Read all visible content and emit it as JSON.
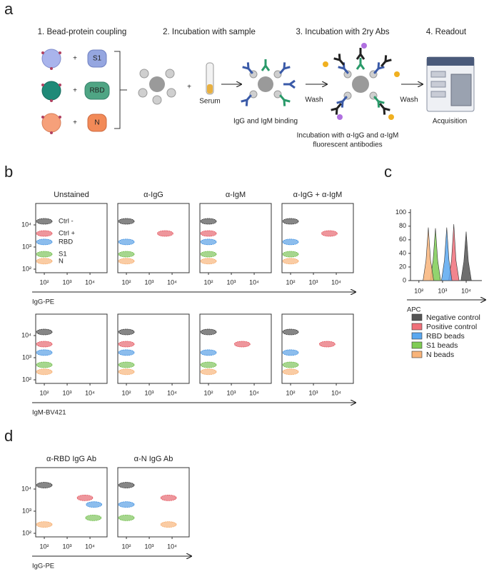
{
  "panel_labels": [
    "a",
    "b",
    "c",
    "d"
  ],
  "diagram": {
    "steps": [
      "1. Bead-protein coupling",
      "2. Incubation with sample",
      "3. Incubation with 2ry Abs",
      "4. Readout"
    ],
    "proteins": [
      "S1",
      "RBD",
      "N"
    ],
    "plus_signs": [
      "+",
      "+",
      "+",
      "+"
    ],
    "serum": "Serum",
    "binding": "IgG and IgM binding",
    "wash": [
      "Wash",
      "Wash"
    ],
    "secondary_note": [
      "Incubation with α-IgG and α-IgM",
      "fluorescent antibodies"
    ],
    "readout": "Acquisition"
  },
  "chart_data": [
    {
      "type": "scatter",
      "title": "Unstained",
      "xlabel": "IgG-PE",
      "xscale": "log",
      "yscale": "log",
      "xlim": [
        42,
        56000
      ],
      "ylim": [
        69,
        93000
      ],
      "xticks": [
        {
          "value": 100,
          "label": "10²"
        },
        {
          "value": 1000,
          "label": "10³"
        },
        {
          "value": 10000,
          "label": "10⁴"
        }
      ],
      "yticks": [
        {
          "value": 100,
          "label": "10²"
        },
        {
          "value": 1000,
          "label": "10³"
        },
        {
          "value": 10000,
          "label": "10⁴"
        }
      ],
      "series": [
        {
          "name": "Ctrl -",
          "color": "#222222",
          "x": [
            100
          ],
          "values": [
            14500
          ]
        },
        {
          "name": "Ctrl +",
          "color": "#e0404a",
          "x": [
            100
          ],
          "values": [
            4100
          ]
        },
        {
          "name": "RBD",
          "color": "#2e86de",
          "x": [
            100
          ],
          "values": [
            1700
          ]
        },
        {
          "name": "S1",
          "color": "#5cb531",
          "x": [
            100
          ],
          "values": [
            475
          ]
        },
        {
          "name": "N",
          "color": "#f5a25a",
          "x": [
            100
          ],
          "values": [
            230
          ]
        }
      ]
    },
    {
      "type": "scatter",
      "title": "α-IgG",
      "xscale": "log",
      "yscale": "log",
      "xlim": [
        42,
        56000
      ],
      "ylim": [
        69,
        93000
      ],
      "xticks": [
        {
          "value": 100,
          "label": "10²"
        },
        {
          "value": 1000,
          "label": "10³"
        },
        {
          "value": 10000,
          "label": "10⁴"
        }
      ],
      "series": [
        {
          "color": "#222222",
          "x": [
            100
          ],
          "values": [
            14500
          ]
        },
        {
          "color": "#e0404a",
          "x": [
            5000
          ],
          "values": [
            4100
          ]
        },
        {
          "color": "#2e86de",
          "x": [
            100
          ],
          "values": [
            1700
          ]
        },
        {
          "color": "#5cb531",
          "x": [
            100
          ],
          "values": [
            475
          ]
        },
        {
          "color": "#f5a25a",
          "x": [
            100
          ],
          "values": [
            230
          ]
        }
      ]
    },
    {
      "type": "scatter",
      "title": "α-IgM",
      "xscale": "log",
      "yscale": "log",
      "xlim": [
        42,
        56000
      ],
      "ylim": [
        69,
        93000
      ],
      "xticks": [
        {
          "value": 100,
          "label": "10²"
        },
        {
          "value": 1000,
          "label": "10³"
        },
        {
          "value": 10000,
          "label": "10⁴"
        }
      ],
      "series": [
        {
          "color": "#222222",
          "x": [
            100
          ],
          "values": [
            14500
          ]
        },
        {
          "color": "#e0404a",
          "x": [
            100
          ],
          "values": [
            4100
          ]
        },
        {
          "color": "#2e86de",
          "x": [
            100
          ],
          "values": [
            1700
          ]
        },
        {
          "color": "#5cb531",
          "x": [
            100
          ],
          "values": [
            475
          ]
        },
        {
          "color": "#f5a25a",
          "x": [
            100
          ],
          "values": [
            230
          ]
        }
      ]
    },
    {
      "type": "scatter",
      "title": "α-IgG + α-IgM",
      "xscale": "log",
      "yscale": "log",
      "xlim": [
        42,
        56000
      ],
      "ylim": [
        69,
        93000
      ],
      "xticks": [
        {
          "value": 100,
          "label": "10²"
        },
        {
          "value": 1000,
          "label": "10³"
        },
        {
          "value": 10000,
          "label": "10⁴"
        }
      ],
      "series": [
        {
          "color": "#222222",
          "x": [
            100
          ],
          "values": [
            14500
          ]
        },
        {
          "color": "#e0404a",
          "x": [
            5000
          ],
          "values": [
            4100
          ]
        },
        {
          "color": "#2e86de",
          "x": [
            100
          ],
          "values": [
            1700
          ]
        },
        {
          "color": "#5cb531",
          "x": [
            100
          ],
          "values": [
            475
          ]
        },
        {
          "color": "#f5a25a",
          "x": [
            100
          ],
          "values": [
            230
          ]
        }
      ]
    },
    {
      "type": "scatter",
      "xlabel": "IgM-BV421",
      "xscale": "log",
      "yscale": "log",
      "xlim": [
        42,
        56000
      ],
      "ylim": [
        69,
        93000
      ],
      "xticks": [
        {
          "value": 100,
          "label": "10²"
        },
        {
          "value": 1000,
          "label": "10³"
        },
        {
          "value": 10000,
          "label": "10⁴"
        }
      ],
      "yticks": [
        {
          "value": 100,
          "label": "10²"
        },
        {
          "value": 1000,
          "label": "10³"
        },
        {
          "value": 10000,
          "label": "10⁴"
        }
      ],
      "series": [
        {
          "color": "#222222",
          "x": [
            100
          ],
          "values": [
            14500
          ]
        },
        {
          "color": "#e0404a",
          "x": [
            100
          ],
          "values": [
            4100
          ]
        },
        {
          "color": "#2e86de",
          "x": [
            100
          ],
          "values": [
            1700
          ]
        },
        {
          "color": "#5cb531",
          "x": [
            100
          ],
          "values": [
            475
          ]
        },
        {
          "color": "#f5a25a",
          "x": [
            100
          ],
          "values": [
            230
          ]
        }
      ]
    },
    {
      "type": "scatter",
      "xscale": "log",
      "yscale": "log",
      "xlim": [
        42,
        56000
      ],
      "ylim": [
        69,
        93000
      ],
      "xticks": [
        {
          "value": 100,
          "label": "10²"
        },
        {
          "value": 1000,
          "label": "10³"
        },
        {
          "value": 10000,
          "label": "10⁴"
        }
      ],
      "series": [
        {
          "color": "#222222",
          "x": [
            100
          ],
          "values": [
            14500
          ]
        },
        {
          "color": "#e0404a",
          "x": [
            100
          ],
          "values": [
            4100
          ]
        },
        {
          "color": "#2e86de",
          "x": [
            100
          ],
          "values": [
            1700
          ]
        },
        {
          "color": "#5cb531",
          "x": [
            100
          ],
          "values": [
            475
          ]
        },
        {
          "color": "#f5a25a",
          "x": [
            100
          ],
          "values": [
            230
          ]
        }
      ]
    },
    {
      "type": "scatter",
      "xscale": "log",
      "yscale": "log",
      "xlim": [
        42,
        56000
      ],
      "ylim": [
        69,
        93000
      ],
      "xticks": [
        {
          "value": 100,
          "label": "10²"
        },
        {
          "value": 1000,
          "label": "10³"
        },
        {
          "value": 10000,
          "label": "10⁴"
        }
      ],
      "series": [
        {
          "color": "#222222",
          "x": [
            100
          ],
          "values": [
            14500
          ]
        },
        {
          "color": "#e0404a",
          "x": [
            3000
          ],
          "values": [
            4100
          ]
        },
        {
          "color": "#2e86de",
          "x": [
            100
          ],
          "values": [
            1700
          ]
        },
        {
          "color": "#5cb531",
          "x": [
            100
          ],
          "values": [
            475
          ]
        },
        {
          "color": "#f5a25a",
          "x": [
            100
          ],
          "values": [
            230
          ]
        }
      ]
    },
    {
      "type": "scatter",
      "xscale": "log",
      "yscale": "log",
      "xlim": [
        42,
        56000
      ],
      "ylim": [
        69,
        93000
      ],
      "xticks": [
        {
          "value": 100,
          "label": "10²"
        },
        {
          "value": 1000,
          "label": "10³"
        },
        {
          "value": 10000,
          "label": "10⁴"
        }
      ],
      "series": [
        {
          "color": "#222222",
          "x": [
            100
          ],
          "values": [
            14500
          ]
        },
        {
          "color": "#e0404a",
          "x": [
            4000
          ],
          "values": [
            4100
          ]
        },
        {
          "color": "#2e86de",
          "x": [
            100
          ],
          "values": [
            1700
          ]
        },
        {
          "color": "#5cb531",
          "x": [
            100
          ],
          "values": [
            475
          ]
        },
        {
          "color": "#f5a25a",
          "x": [
            100
          ],
          "values": [
            230
          ]
        }
      ]
    },
    {
      "type": "area",
      "xlabel": "APC",
      "xscale": "log",
      "yscale": "linear",
      "xlim": [
        44,
        46000
      ],
      "ylim": [
        0,
        105
      ],
      "legend": "bottom",
      "xticks": [
        {
          "value": 100,
          "label": "10²"
        },
        {
          "value": 1000,
          "label": "10³"
        },
        {
          "value": 10000,
          "label": "10⁴"
        }
      ],
      "yticks": [
        0,
        20,
        40,
        60,
        80,
        100
      ],
      "series": [
        {
          "name": "Negative control",
          "color": "#555555",
          "x": [
            6000,
            8000,
            10000,
            12400,
            16600
          ],
          "values": [
            0,
            28,
            72,
            28,
            0
          ]
        },
        {
          "name": "Positive control",
          "color": "#f0707a",
          "x": [
            1800,
            2400,
            3000,
            3700,
            5000
          ],
          "values": [
            0,
            30,
            83,
            30,
            0
          ]
        },
        {
          "name": "RBD beads",
          "color": "#5aa8f0",
          "x": [
            900,
            1200,
            1500,
            1870,
            2500
          ],
          "values": [
            0,
            30,
            78,
            30,
            0
          ]
        },
        {
          "name": "S1 beads",
          "color": "#7fcc55",
          "x": [
            300,
            400,
            500,
            620,
            830
          ],
          "values": [
            0,
            30,
            77,
            30,
            0
          ]
        },
        {
          "name": "N beads",
          "color": "#f8b47a",
          "x": [
            150,
            200,
            250,
            310,
            420
          ],
          "values": [
            0,
            30,
            78,
            30,
            0
          ]
        }
      ]
    },
    {
      "type": "scatter",
      "title": "α-RBD IgG Ab",
      "xlabel": "IgG-PE",
      "xscale": "log",
      "yscale": "log",
      "xlim": [
        42,
        56000
      ],
      "ylim": [
        69,
        93000
      ],
      "xticks": [
        {
          "value": 100,
          "label": "10²"
        },
        {
          "value": 1000,
          "label": "10³"
        },
        {
          "value": 10000,
          "label": "10⁴"
        }
      ],
      "yticks": [
        {
          "value": 100,
          "label": "10²"
        },
        {
          "value": 1000,
          "label": "10³"
        },
        {
          "value": 10000,
          "label": "10⁴"
        }
      ],
      "series": [
        {
          "color": "#222222",
          "x": [
            100
          ],
          "values": [
            15000
          ]
        },
        {
          "color": "#e0404a",
          "x": [
            6000
          ],
          "values": [
            4000
          ]
        },
        {
          "color": "#2e86de",
          "x": [
            15000
          ],
          "values": [
            2000
          ]
        },
        {
          "color": "#5cb531",
          "x": [
            14000
          ],
          "values": [
            500
          ]
        },
        {
          "color": "#f5a25a",
          "x": [
            100
          ],
          "values": [
            250
          ]
        }
      ]
    },
    {
      "type": "scatter",
      "title": "α-N IgG Ab",
      "xscale": "log",
      "yscale": "log",
      "xlim": [
        42,
        56000
      ],
      "ylim": [
        69,
        93000
      ],
      "xticks": [
        {
          "value": 100,
          "label": "10²"
        },
        {
          "value": 1000,
          "label": "10³"
        },
        {
          "value": 10000,
          "label": "10⁴"
        }
      ],
      "series": [
        {
          "color": "#222222",
          "x": [
            100
          ],
          "values": [
            15000
          ]
        },
        {
          "color": "#e0404a",
          "x": [
            7000
          ],
          "values": [
            4000
          ]
        },
        {
          "color": "#2e86de",
          "x": [
            100
          ],
          "values": [
            2000
          ]
        },
        {
          "color": "#5cb531",
          "x": [
            100
          ],
          "values": [
            500
          ]
        },
        {
          "color": "#f5a25a",
          "x": [
            7000
          ],
          "values": [
            250
          ]
        }
      ]
    }
  ]
}
